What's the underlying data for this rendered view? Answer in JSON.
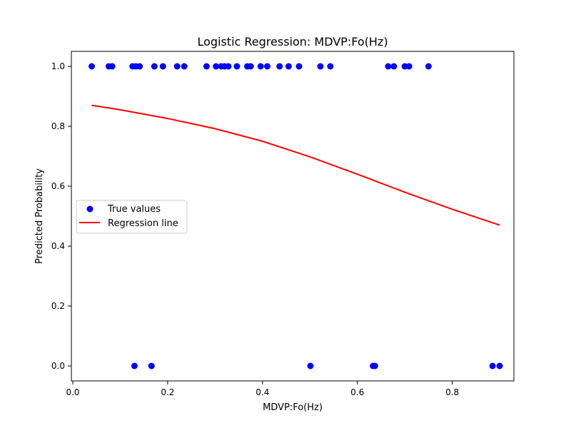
{
  "chart_data": {
    "type": "scatter",
    "title": "Logistic Regression: MDVP:Fo(Hz)",
    "xlabel": "MDVP:Fo(Hz)",
    "ylabel": "Predicted Probability",
    "xlim": [
      -0.003,
      0.93
    ],
    "ylim": [
      -0.05,
      1.05
    ],
    "x_ticks": [
      0.0,
      0.2,
      0.4,
      0.6,
      0.8
    ],
    "x_tick_labels": [
      "0.0",
      "0.2",
      "0.4",
      "0.6",
      "0.8"
    ],
    "y_ticks": [
      0.0,
      0.2,
      0.4,
      0.6,
      0.8,
      1.0
    ],
    "y_tick_labels": [
      "0.0",
      "0.2",
      "0.4",
      "0.6",
      "0.8",
      "1.0"
    ],
    "grid": false,
    "legend_position": "center-left",
    "series": [
      {
        "name": "True values",
        "kind": "scatter",
        "color": "#0000ff",
        "points": [
          [
            0.04,
            1
          ],
          [
            0.076,
            1
          ],
          [
            0.083,
            1
          ],
          [
            0.126,
            1
          ],
          [
            0.133,
            1
          ],
          [
            0.141,
            1
          ],
          [
            0.172,
            1
          ],
          [
            0.19,
            1
          ],
          [
            0.22,
            1
          ],
          [
            0.235,
            1
          ],
          [
            0.282,
            1
          ],
          [
            0.302,
            1
          ],
          [
            0.313,
            1
          ],
          [
            0.32,
            1
          ],
          [
            0.328,
            1
          ],
          [
            0.346,
            1
          ],
          [
            0.368,
            1
          ],
          [
            0.375,
            1
          ],
          [
            0.396,
            1
          ],
          [
            0.41,
            1
          ],
          [
            0.436,
            1
          ],
          [
            0.455,
            1
          ],
          [
            0.477,
            1
          ],
          [
            0.522,
            1
          ],
          [
            0.543,
            1
          ],
          [
            0.665,
            1
          ],
          [
            0.677,
            1
          ],
          [
            0.7,
            1
          ],
          [
            0.709,
            1
          ],
          [
            0.75,
            1
          ],
          [
            0.13,
            0
          ],
          [
            0.166,
            0
          ],
          [
            0.501,
            0
          ],
          [
            0.633,
            0
          ],
          [
            0.637,
            0
          ],
          [
            0.885,
            0
          ],
          [
            0.9,
            0
          ]
        ]
      },
      {
        "name": "Regression line",
        "kind": "line",
        "color": "#ff0000",
        "x": [
          0.04,
          0.1,
          0.2,
          0.3,
          0.4,
          0.5,
          0.6,
          0.7,
          0.8,
          0.9
        ],
        "y": [
          0.87,
          0.855,
          0.826,
          0.792,
          0.75,
          0.698,
          0.64,
          0.58,
          0.523,
          0.47
        ]
      }
    ]
  }
}
